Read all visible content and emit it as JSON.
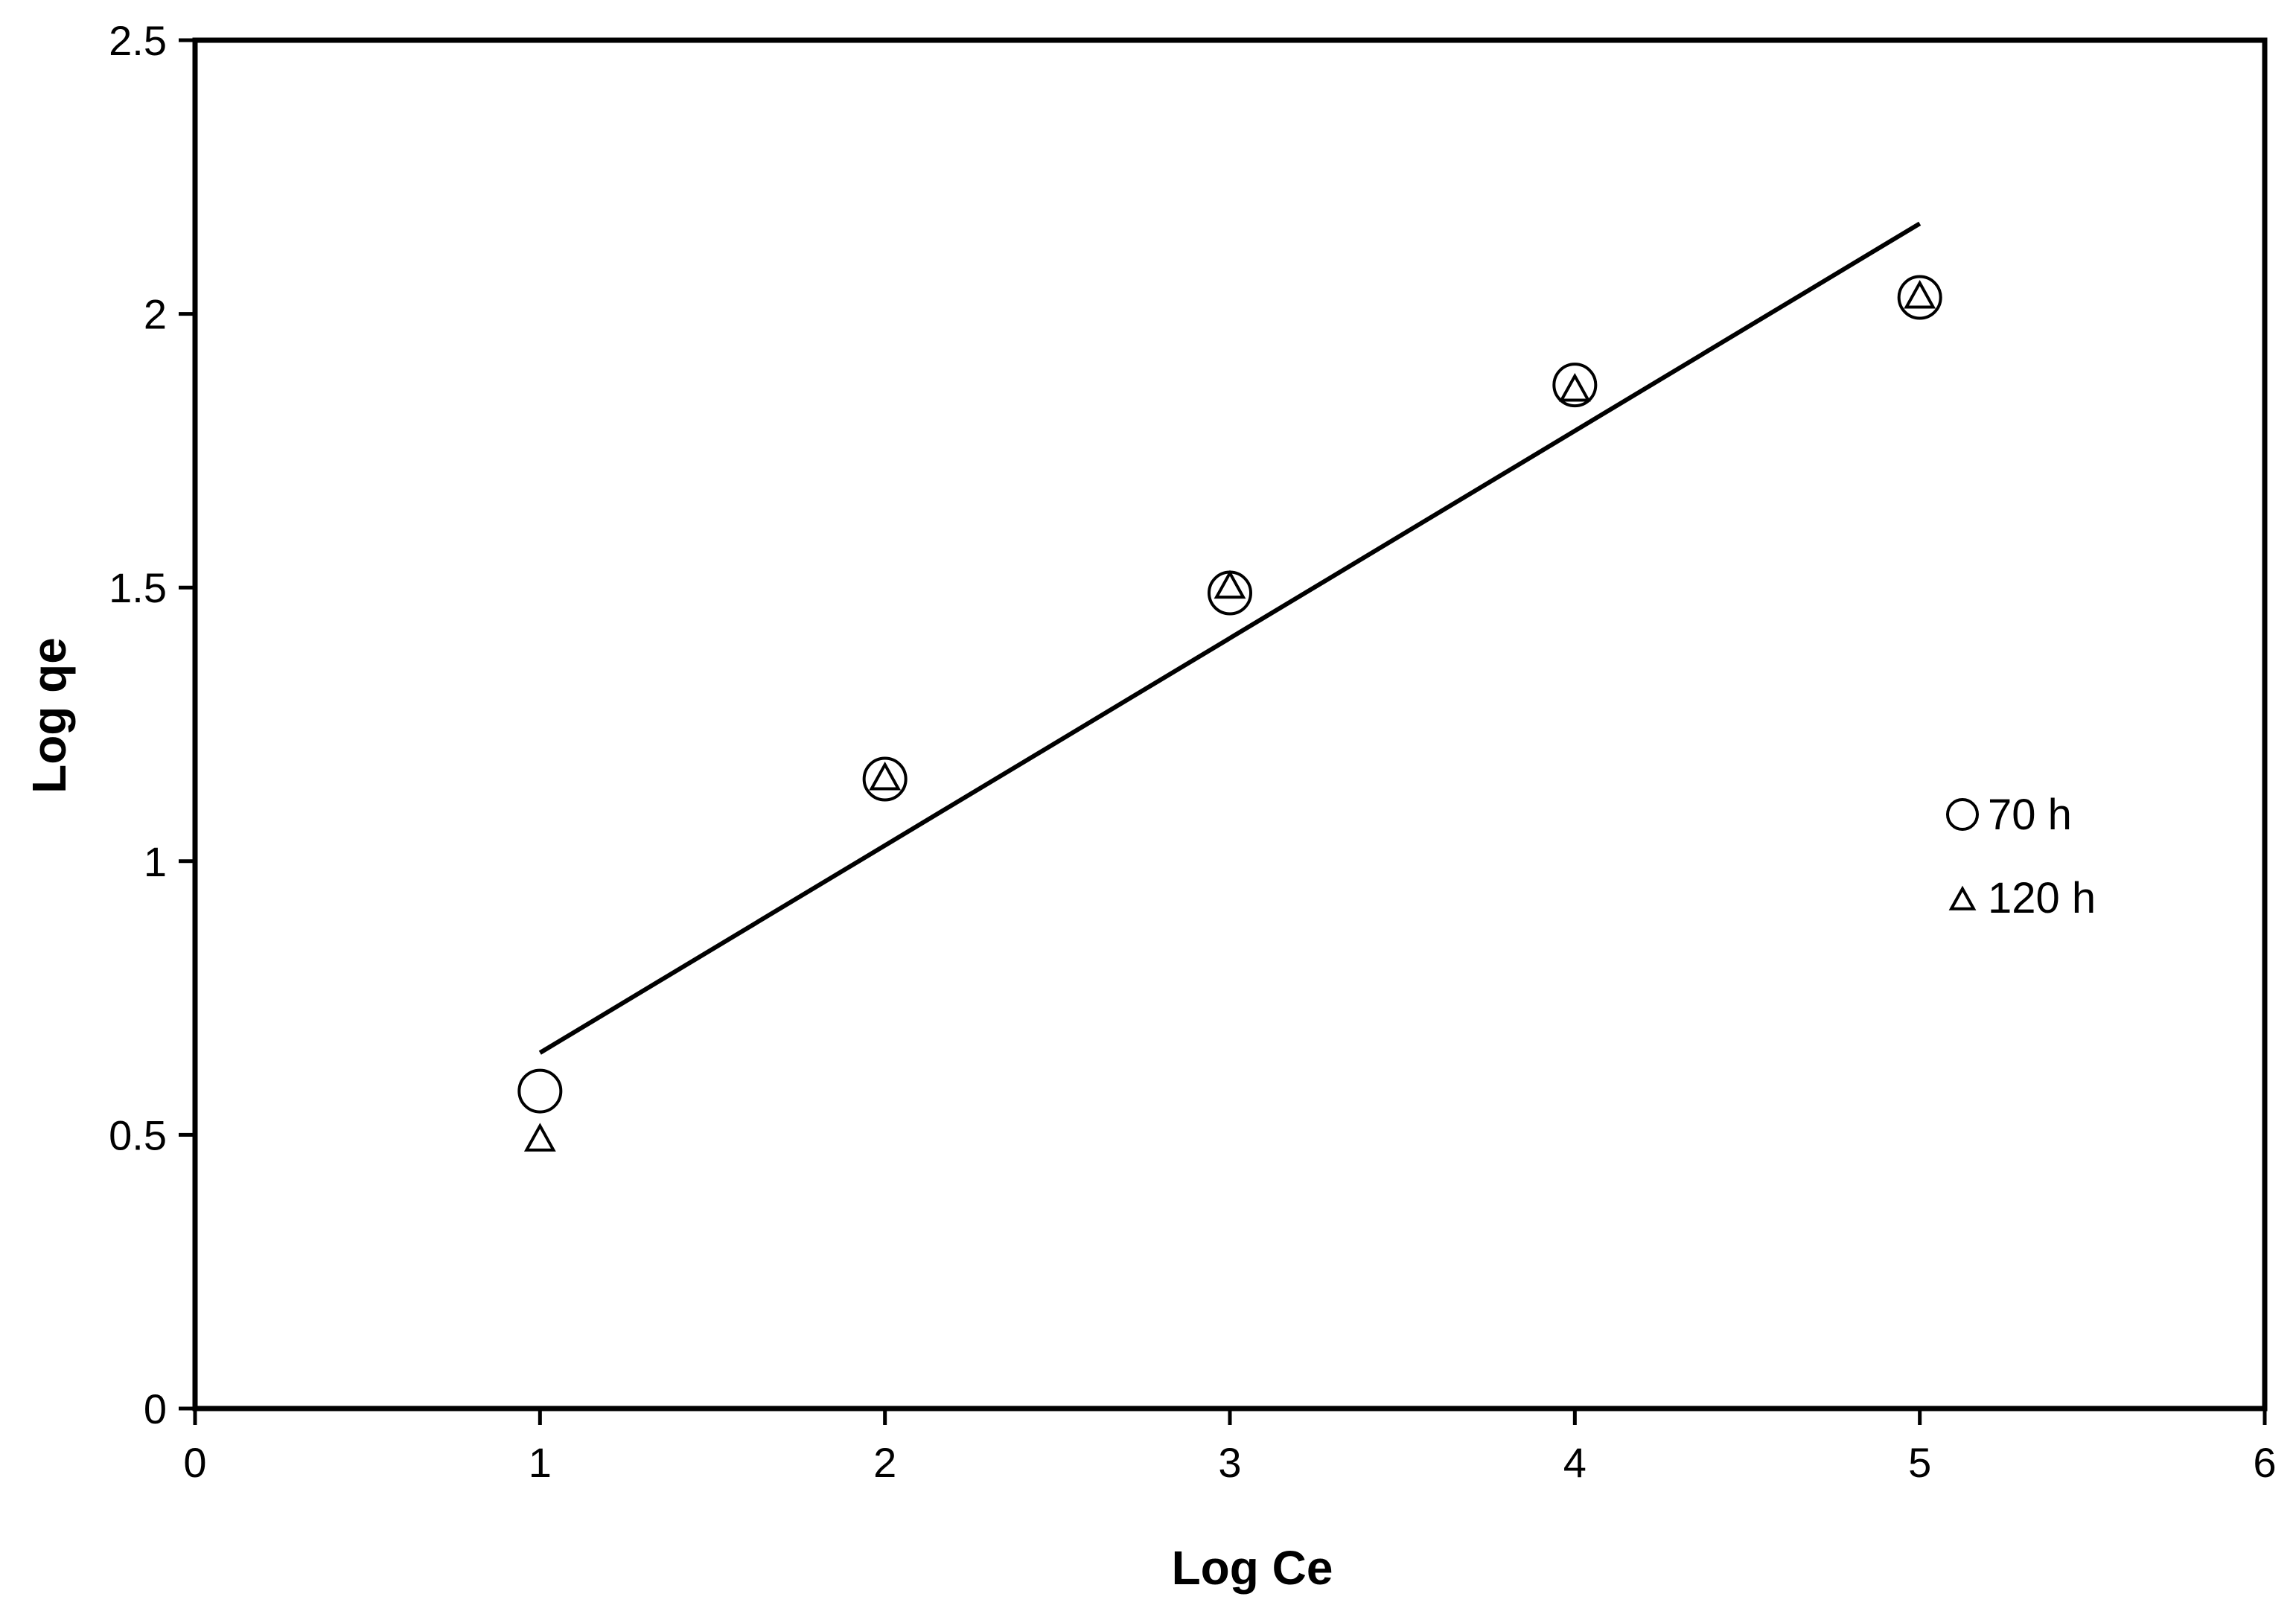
{
  "chart_data": {
    "type": "scatter",
    "xlabel": "Log Ce",
    "ylabel": "Log qe",
    "xlim": [
      0,
      6
    ],
    "ylim": [
      0,
      2.5
    ],
    "x_ticks": [
      0,
      1,
      2,
      3,
      4,
      5,
      6
    ],
    "y_ticks": [
      0,
      0.5,
      1,
      1.5,
      2,
      2.5
    ],
    "x_tick_labels": [
      "0",
      "1",
      "2",
      "3",
      "4",
      "5",
      "6"
    ],
    "y_tick_labels": [
      "0",
      "0.5",
      "1",
      "1.5",
      "2",
      "2.5"
    ],
    "grid": false,
    "legend_position": "right",
    "series": [
      {
        "name": "70 h",
        "marker": "circle",
        "x": [
          1,
          2,
          3,
          4,
          5
        ],
        "y": [
          0.58,
          1.15,
          1.49,
          1.87,
          2.03
        ]
      },
      {
        "name": "120 h",
        "marker": "triangle",
        "x": [
          1,
          2,
          3,
          4,
          5
        ],
        "y": [
          0.49,
          1.15,
          1.5,
          1.86,
          2.03
        ]
      }
    ],
    "trendline": {
      "x": [
        1,
        5
      ],
      "y": [
        0.65,
        2.165
      ]
    },
    "colors": {
      "marker": "#000000",
      "line": "#000000",
      "axis": "#000000"
    }
  }
}
